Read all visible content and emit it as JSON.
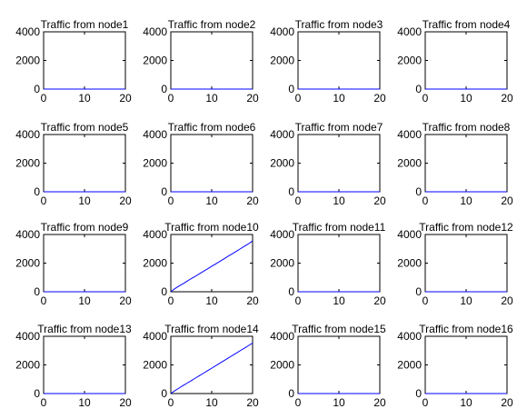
{
  "chart_data": [
    {
      "type": "line",
      "title": "Traffic from node1",
      "xticks": [
        "0",
        "10",
        "20"
      ],
      "yticks": [
        "0",
        "2000",
        "4000"
      ],
      "xlim": [
        0,
        20
      ],
      "ylim": [
        0,
        4000
      ],
      "series": [
        {
          "x": [
            0,
            20
          ],
          "y": [
            0,
            0
          ]
        }
      ]
    },
    {
      "type": "line",
      "title": "Traffic from node2",
      "xticks": [
        "0",
        "10",
        "20"
      ],
      "yticks": [
        "0",
        "2000",
        "4000"
      ],
      "xlim": [
        0,
        20
      ],
      "ylim": [
        0,
        4000
      ],
      "series": [
        {
          "x": [
            0,
            20
          ],
          "y": [
            0,
            0
          ]
        }
      ]
    },
    {
      "type": "line",
      "title": "Traffic from node3",
      "xticks": [
        "0",
        "10",
        "20"
      ],
      "yticks": [
        "0",
        "2000",
        "4000"
      ],
      "xlim": [
        0,
        20
      ],
      "ylim": [
        0,
        4000
      ],
      "series": [
        {
          "x": [
            0,
            20
          ],
          "y": [
            0,
            0
          ]
        }
      ]
    },
    {
      "type": "line",
      "title": "Traffic from node4",
      "xticks": [
        "0",
        "10",
        "20"
      ],
      "yticks": [
        "0",
        "2000",
        "4000"
      ],
      "xlim": [
        0,
        20
      ],
      "ylim": [
        0,
        4000
      ],
      "series": [
        {
          "x": [
            0,
            20
          ],
          "y": [
            0,
            0
          ]
        }
      ]
    },
    {
      "type": "line",
      "title": "Traffic from node5",
      "xticks": [
        "0",
        "10",
        "20"
      ],
      "yticks": [
        "0",
        "2000",
        "4000"
      ],
      "xlim": [
        0,
        20
      ],
      "ylim": [
        0,
        4000
      ],
      "series": [
        {
          "x": [
            0,
            20
          ],
          "y": [
            0,
            0
          ]
        }
      ]
    },
    {
      "type": "line",
      "title": "Traffic from node6",
      "xticks": [
        "0",
        "10",
        "20"
      ],
      "yticks": [
        "0",
        "2000",
        "4000"
      ],
      "xlim": [
        0,
        20
      ],
      "ylim": [
        0,
        4000
      ],
      "series": [
        {
          "x": [
            0,
            20
          ],
          "y": [
            0,
            0
          ]
        }
      ]
    },
    {
      "type": "line",
      "title": "Traffic from node7",
      "xticks": [
        "0",
        "10",
        "20"
      ],
      "yticks": [
        "0",
        "2000",
        "4000"
      ],
      "xlim": [
        0,
        20
      ],
      "ylim": [
        0,
        4000
      ],
      "series": [
        {
          "x": [
            0,
            20
          ],
          "y": [
            0,
            0
          ]
        }
      ]
    },
    {
      "type": "line",
      "title": "Traffic from node8",
      "xticks": [
        "0",
        "10",
        "20"
      ],
      "yticks": [
        "0",
        "2000",
        "4000"
      ],
      "xlim": [
        0,
        20
      ],
      "ylim": [
        0,
        4000
      ],
      "series": [
        {
          "x": [
            0,
            20
          ],
          "y": [
            0,
            0
          ]
        }
      ]
    },
    {
      "type": "line",
      "title": "Traffic from node9",
      "xticks": [
        "0",
        "10",
        "20"
      ],
      "yticks": [
        "0",
        "2000",
        "4000"
      ],
      "xlim": [
        0,
        20
      ],
      "ylim": [
        0,
        4000
      ],
      "series": [
        {
          "x": [
            0,
            20
          ],
          "y": [
            0,
            0
          ]
        }
      ]
    },
    {
      "type": "line",
      "title": "Traffic from node10",
      "xticks": [
        "0",
        "10",
        "20"
      ],
      "yticks": [
        "0",
        "2000",
        "4000"
      ],
      "xlim": [
        0,
        20
      ],
      "ylim": [
        0,
        4000
      ],
      "series": [
        {
          "x": [
            0,
            1,
            2,
            3,
            4,
            5,
            6,
            7,
            8,
            9,
            10,
            11,
            12,
            13,
            14,
            15,
            16,
            17,
            18,
            19,
            20
          ],
          "y": [
            0,
            220,
            400,
            560,
            740,
            920,
            1080,
            1260,
            1430,
            1600,
            1780,
            1950,
            2120,
            2300,
            2480,
            2650,
            2820,
            3000,
            3180,
            3350,
            3550
          ]
        }
      ]
    },
    {
      "type": "line",
      "title": "Traffic from node11",
      "xticks": [
        "0",
        "10",
        "20"
      ],
      "yticks": [
        "0",
        "2000",
        "4000"
      ],
      "xlim": [
        0,
        20
      ],
      "ylim": [
        0,
        4000
      ],
      "series": [
        {
          "x": [
            0,
            20
          ],
          "y": [
            0,
            0
          ]
        }
      ]
    },
    {
      "type": "line",
      "title": "Traffic from node12",
      "xticks": [
        "0",
        "10",
        "20"
      ],
      "yticks": [
        "0",
        "2000",
        "4000"
      ],
      "xlim": [
        0,
        20
      ],
      "ylim": [
        0,
        4000
      ],
      "series": [
        {
          "x": [
            0,
            20
          ],
          "y": [
            0,
            0
          ]
        }
      ]
    },
    {
      "type": "line",
      "title": "Traffic from node13",
      "xticks": [
        "0",
        "10",
        "20"
      ],
      "yticks": [
        "0",
        "2000",
        "4000"
      ],
      "xlim": [
        0,
        20
      ],
      "ylim": [
        0,
        4000
      ],
      "series": [
        {
          "x": [
            0,
            20
          ],
          "y": [
            0,
            0
          ]
        }
      ]
    },
    {
      "type": "line",
      "title": "Traffic from node14",
      "xticks": [
        "0",
        "10",
        "20"
      ],
      "yticks": [
        "0",
        "2000",
        "4000"
      ],
      "xlim": [
        0,
        20
      ],
      "ylim": [
        0,
        4000
      ],
      "series": [
        {
          "x": [
            0,
            1,
            2,
            3,
            4,
            5,
            6,
            7,
            8,
            9,
            10,
            11,
            12,
            13,
            14,
            15,
            16,
            17,
            18,
            19,
            20
          ],
          "y": [
            0,
            200,
            380,
            560,
            730,
            900,
            1080,
            1250,
            1420,
            1600,
            1770,
            1950,
            2120,
            2300,
            2470,
            2650,
            2820,
            3000,
            3170,
            3350,
            3530
          ]
        }
      ]
    },
    {
      "type": "line",
      "title": "Traffic from node15",
      "xticks": [
        "0",
        "10",
        "20"
      ],
      "yticks": [
        "0",
        "2000",
        "4000"
      ],
      "xlim": [
        0,
        20
      ],
      "ylim": [
        0,
        4000
      ],
      "series": [
        {
          "x": [
            0,
            20
          ],
          "y": [
            0,
            0
          ]
        }
      ]
    },
    {
      "type": "line",
      "title": "Traffic from node16",
      "xticks": [
        "0",
        "10",
        "20"
      ],
      "yticks": [
        "0",
        "2000",
        "4000"
      ],
      "xlim": [
        0,
        20
      ],
      "ylim": [
        0,
        4000
      ],
      "series": [
        {
          "x": [
            0,
            20
          ],
          "y": [
            0,
            0
          ]
        }
      ]
    }
  ],
  "style": {
    "line_color": "#0000ff",
    "axis_color": "#000000",
    "background": "#ffffff"
  }
}
